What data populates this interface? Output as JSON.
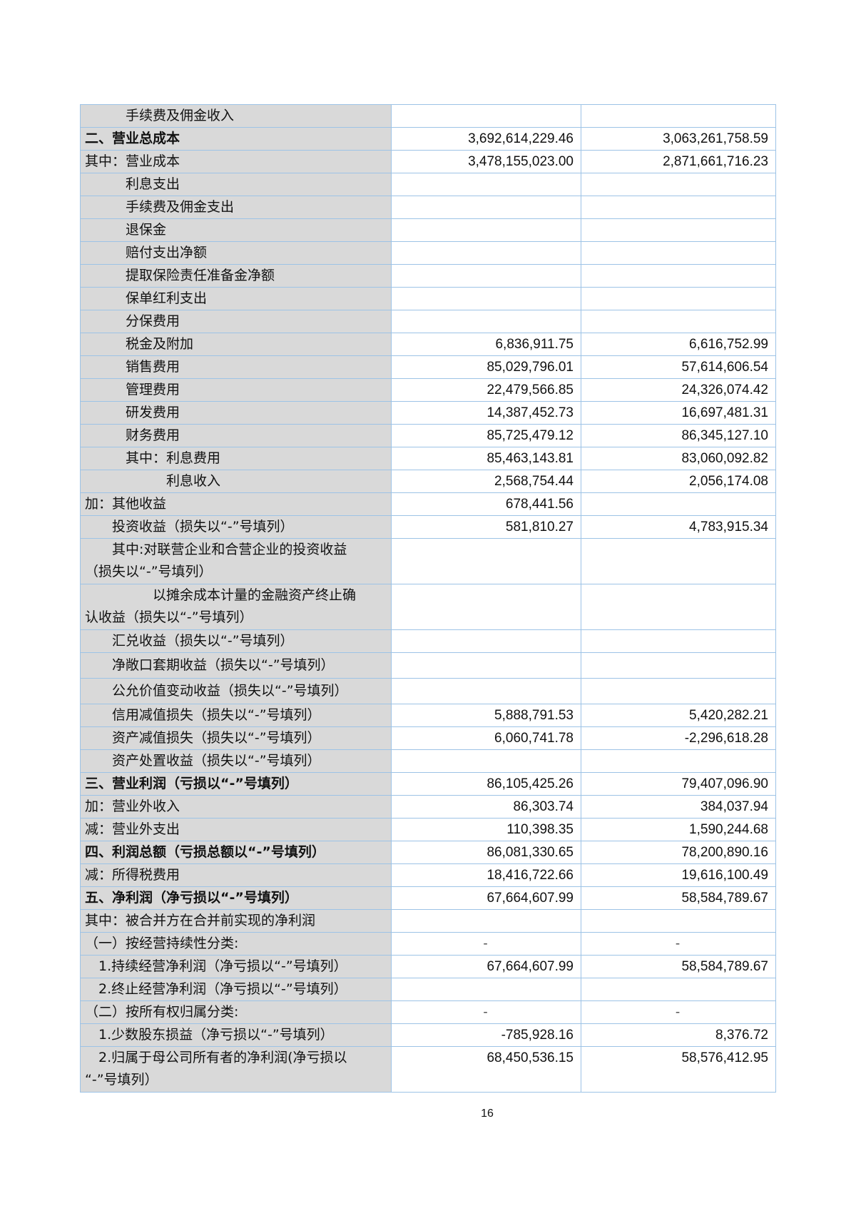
{
  "rows": [
    {
      "label": "　　　手续费及佣金收入",
      "current": "",
      "prior": ""
    },
    {
      "label": "二、营业总成本",
      "current": "3,692,614,229.46",
      "prior": "3,063,261,758.59",
      "bold": true
    },
    {
      "label": "其中：营业成本",
      "current": "3,478,155,023.00",
      "prior": "2,871,661,716.23"
    },
    {
      "label": "　　　利息支出",
      "current": "",
      "prior": ""
    },
    {
      "label": "　　　手续费及佣金支出",
      "current": "",
      "prior": ""
    },
    {
      "label": "　　　退保金",
      "current": "",
      "prior": ""
    },
    {
      "label": "　　　赔付支出净额",
      "current": "",
      "prior": ""
    },
    {
      "label": "　　　提取保险责任准备金净额",
      "current": "",
      "prior": ""
    },
    {
      "label": "　　　保单红利支出",
      "current": "",
      "prior": ""
    },
    {
      "label": "　　　分保费用",
      "current": "",
      "prior": ""
    },
    {
      "label": "　　　税金及附加",
      "current": "6,836,911.75",
      "prior": "6,616,752.99"
    },
    {
      "label": "　　　销售费用",
      "current": "85,029,796.01",
      "prior": "57,614,606.54"
    },
    {
      "label": "　　　管理费用",
      "current": "22,479,566.85",
      "prior": "24,326,074.42"
    },
    {
      "label": "　　　研发费用",
      "current": "14,387,452.73",
      "prior": "16,697,481.31"
    },
    {
      "label": "　　　财务费用",
      "current": "85,725,479.12",
      "prior": "86,345,127.10"
    },
    {
      "label": "　　　其中：利息费用",
      "current": "85,463,143.81",
      "prior": "83,060,092.82"
    },
    {
      "label": "　　　　　　利息收入",
      "current": "2,568,754.44",
      "prior": "2,056,174.08"
    },
    {
      "label": "加：其他收益",
      "current": "678,441.56",
      "prior": ""
    },
    {
      "label": "　　投资收益（损失以“-”号填列）",
      "current": "581,810.27",
      "prior": "4,783,915.34"
    },
    {
      "label": "　　其中:对联营企业和合营企业的投资收益\n（损失以“-”号填列）",
      "current": "",
      "prior": ""
    },
    {
      "label": "　　　　　以摊余成本计量的金融资产终止确\n认收益（损失以“-”号填列）",
      "current": "",
      "prior": ""
    },
    {
      "label": "　　汇兑收益（损失以“-”号填列）",
      "current": "",
      "prior": ""
    },
    {
      "label": "　　净敞口套期收益（损失以“-”号填列）",
      "current": "",
      "prior": ""
    },
    {
      "label": "　　公允价值变动收益（损失以“-”号填列）",
      "current": "",
      "prior": ""
    },
    {
      "label": "　　信用减值损失（损失以“-”号填列）",
      "current": "5,888,791.53",
      "prior": "5,420,282.21"
    },
    {
      "label": "　　资产减值损失（损失以“-”号填列）",
      "current": "6,060,741.78",
      "prior": "-2,296,618.28"
    },
    {
      "label": "　　资产处置收益（损失以“-”号填列）",
      "current": "",
      "prior": ""
    },
    {
      "label": "三、营业利润（亏损以“-”号填列）",
      "current": "86,105,425.26",
      "prior": "79,407,096.90",
      "bold": true
    },
    {
      "label": "加：营业外收入",
      "current": "86,303.74",
      "prior": "384,037.94"
    },
    {
      "label": "减：营业外支出",
      "current": "110,398.35",
      "prior": "1,590,244.68"
    },
    {
      "label": "四、利润总额（亏损总额以“-”号填列）",
      "current": "86,081,330.65",
      "prior": "78,200,890.16",
      "bold": true
    },
    {
      "label": "减：所得税费用",
      "current": "18,416,722.66",
      "prior": "19,616,100.49"
    },
    {
      "label": "五、净利润（净亏损以“-”号填列）",
      "current": "67,664,607.99",
      "prior": "58,584,789.67",
      "bold": true
    },
    {
      "label": "其中：被合并方在合并前实现的净利润",
      "current": "",
      "prior": ""
    },
    {
      "label": "（一）按经营持续性分类:",
      "current": "-",
      "prior": "-"
    },
    {
      "label": "　1.持续经营净利润（净亏损以“-”号填列）",
      "current": "67,664,607.99",
      "prior": "58,584,789.67"
    },
    {
      "label": "　2.终止经营净利润（净亏损以“-”号填列）",
      "current": "",
      "prior": ""
    },
    {
      "label": "（二）按所有权归属分类:",
      "current": "-",
      "prior": "-"
    },
    {
      "label": "　1.少数股东损益（净亏损以“-”号填列）",
      "current": "-785,928.16",
      "prior": "8,376.72"
    },
    {
      "label": "　2.归属于母公司所有者的净利润(净亏损以\n“-”号填列）",
      "current": "68,450,536.15",
      "prior": "58,576,412.95"
    }
  ],
  "page_number": "16"
}
